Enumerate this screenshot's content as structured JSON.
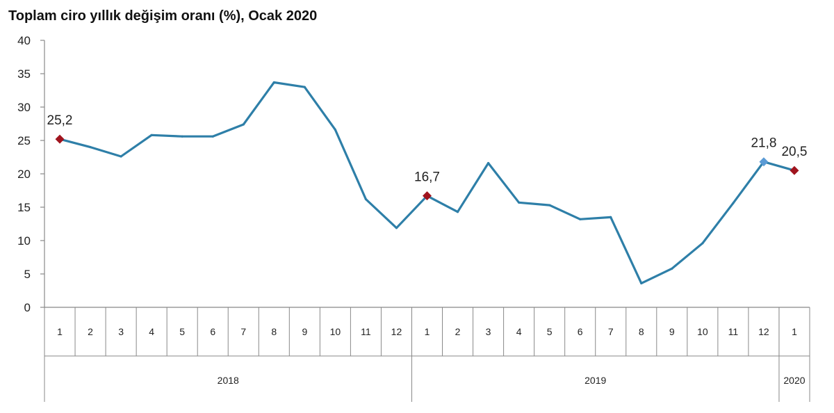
{
  "chart_data": {
    "type": "line",
    "title": "Toplam ciro yıllık değişim oranı (%), Ocak 2020",
    "xlabel": "",
    "ylabel": "",
    "ylim": [
      0,
      40
    ],
    "yticks": [
      "0",
      "5",
      "10",
      "15",
      "20",
      "25",
      "30",
      "35",
      "40"
    ],
    "grid": false,
    "categories": [
      "1",
      "2",
      "3",
      "4",
      "5",
      "6",
      "7",
      "8",
      "9",
      "10",
      "11",
      "12",
      "1",
      "2",
      "3",
      "4",
      "5",
      "6",
      "7",
      "8",
      "9",
      "10",
      "11",
      "12",
      "1"
    ],
    "years": [
      {
        "label": "2018",
        "start": 0,
        "end": 11
      },
      {
        "label": "2019",
        "start": 12,
        "end": 23
      },
      {
        "label": "2020",
        "start": 24,
        "end": 24
      }
    ],
    "values": [
      25.2,
      24.0,
      22.6,
      25.8,
      25.6,
      25.6,
      27.4,
      33.7,
      33.0,
      26.6,
      16.2,
      11.9,
      16.7,
      14.3,
      21.6,
      15.7,
      15.3,
      13.2,
      13.5,
      3.6,
      5.8,
      9.6,
      15.6,
      21.8,
      20.5
    ],
    "line_color": "#2e7fa8",
    "marker_color": "#a0141e",
    "highlight_marker_color": "#5b9bd5",
    "annotations": [
      {
        "index": 0,
        "label": "25,2",
        "marker": "marker_color"
      },
      {
        "index": 12,
        "label": "16,7",
        "marker": "marker_color"
      },
      {
        "index": 23,
        "label": "21,8",
        "marker": "highlight_marker_color"
      },
      {
        "index": 24,
        "label": "20,5",
        "marker": "marker_color"
      }
    ]
  }
}
